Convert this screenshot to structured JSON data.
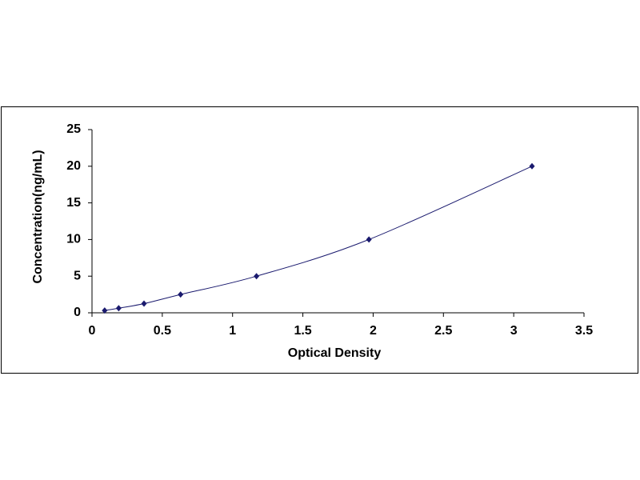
{
  "chart_data": {
    "type": "scatter",
    "line": "smooth",
    "x_label": "Optical Density",
    "y_label": "Concentration(ng/mL)",
    "series": [
      {
        "color": "#1a1a6e",
        "x": [
          0.09,
          0.19,
          0.37,
          0.63,
          1.17,
          1.97,
          3.13
        ],
        "values": [
          0.31,
          0.63,
          1.25,
          2.5,
          5,
          10,
          20
        ]
      }
    ],
    "xlim": [
      0,
      3.5
    ],
    "xticks": [
      0,
      0.5,
      1,
      1.5,
      2,
      2.5,
      3,
      3.5
    ],
    "ylim": [
      0,
      25
    ],
    "yticks": [
      0,
      5,
      10,
      15,
      20,
      25
    ],
    "grid": false
  }
}
